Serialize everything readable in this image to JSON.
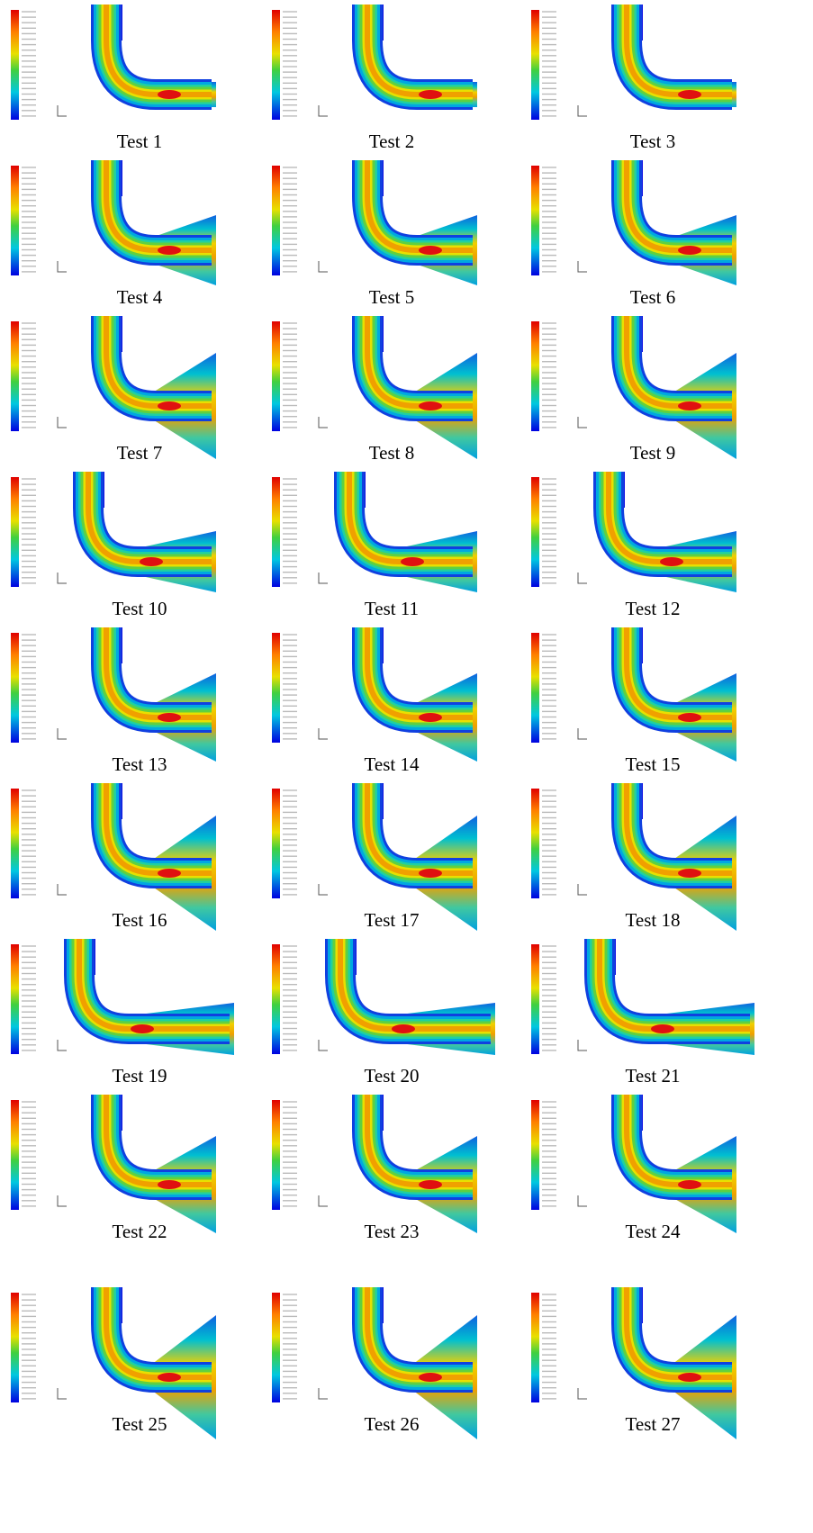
{
  "panels": [
    {
      "caption": "Test 1"
    },
    {
      "caption": "Test 2"
    },
    {
      "caption": "Test 3"
    },
    {
      "caption": "Test 4"
    },
    {
      "caption": "Test 5"
    },
    {
      "caption": "Test 6"
    },
    {
      "caption": "Test 7"
    },
    {
      "caption": "Test 8"
    },
    {
      "caption": "Test 9"
    },
    {
      "caption": "Test 10"
    },
    {
      "caption": "Test 11"
    },
    {
      "caption": "Test 12"
    },
    {
      "caption": "Test 13"
    },
    {
      "caption": "Test 14"
    },
    {
      "caption": "Test 15"
    },
    {
      "caption": "Test 16"
    },
    {
      "caption": "Test 17"
    },
    {
      "caption": "Test 18"
    },
    {
      "caption": "Test 19"
    },
    {
      "caption": "Test 20"
    },
    {
      "caption": "Test 21"
    },
    {
      "caption": "Test 22"
    },
    {
      "caption": "Test 23"
    },
    {
      "caption": "Test 24"
    },
    {
      "caption": "Test 25"
    },
    {
      "caption": "Test 26"
    },
    {
      "caption": "Test 27"
    }
  ]
}
